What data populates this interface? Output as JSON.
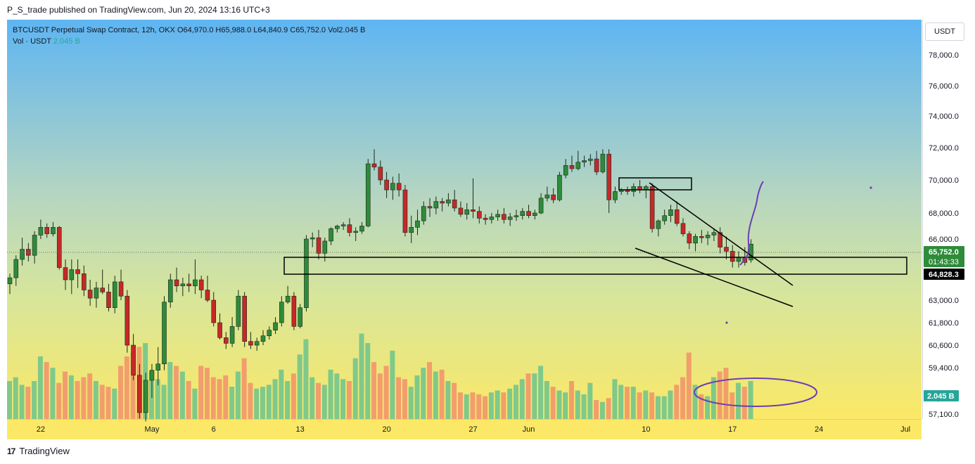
{
  "header": "P_S_trade published on TradingView.com, Jun 20, 2024 13:16 UTC+3",
  "legend": {
    "symbol": "BTCUSDT Perpetual Swap Contract, 12h, OKX",
    "o_label": "O",
    "o": "64,970.0",
    "h_label": "H",
    "h": "65,988.0",
    "l_label": "L",
    "l": "64,840.9",
    "c_label": "C",
    "c": "65,752.0",
    "vol_label": "Vol",
    "vol": "2.045 B",
    "vol_series": "Vol · USDT",
    "vol_value": "2.045 B"
  },
  "unit_button": "USDT",
  "footer": {
    "brand": "TradingView",
    "logo": "17"
  },
  "price_badges": {
    "last": "65,752.0",
    "countdown": "01:43:33",
    "line": "64,828.3",
    "volume": "2.045 B"
  },
  "colors": {
    "up": "#26a69a",
    "down": "#ef5350",
    "candle_up": "#2e8b3a",
    "candle_down": "#c62828",
    "vol_up": "#7fc98a",
    "vol_down": "#f29e6c",
    "annotation": "#6a3fb5"
  },
  "chart_data": {
    "type": "candlestick",
    "title": "BTCUSDT Perpetual Swap Contract, 12h, OKX",
    "ylim": [
      56500,
      80500
    ],
    "price_ticks": [
      {
        "label": "78,000.0",
        "v": 78000
      },
      {
        "label": "76,000.0",
        "v": 76000
      },
      {
        "label": "74,000.0",
        "v": 74000
      },
      {
        "label": "72,000.0",
        "v": 72000
      },
      {
        "label": "70,000.0",
        "v": 70000
      },
      {
        "label": "68,000.0",
        "v": 68000
      },
      {
        "label": "66,000.0",
        "v": 66000
      },
      {
        "label": "63,000.0",
        "v": 63000
      },
      {
        "label": "61,800.0",
        "v": 61800
      },
      {
        "label": "60,600.0",
        "v": 60600
      },
      {
        "label": "59,400.0",
        "v": 59400
      },
      {
        "label": "58,200.0",
        "v": 58200
      },
      {
        "label": "57,100.0",
        "v": 57100
      }
    ],
    "time_ticks": [
      {
        "label": "22",
        "i": 5
      },
      {
        "label": "May",
        "i": 23
      },
      {
        "label": "6",
        "i": 33
      },
      {
        "label": "13",
        "i": 47
      },
      {
        "label": "20",
        "i": 61
      },
      {
        "label": "27",
        "i": 75
      },
      {
        "label": "Jun",
        "i": 84
      },
      {
        "label": "10",
        "i": 103
      },
      {
        "label": "17",
        "i": 117
      },
      {
        "label": "24",
        "i": 131
      },
      {
        "label": "Jul",
        "i": 145
      }
    ],
    "ohlc": [
      [
        63800,
        64300,
        63300,
        64100
      ],
      [
        64100,
        65200,
        63700,
        65000
      ],
      [
        65000,
        66100,
        64700,
        65500
      ],
      [
        65500,
        65800,
        64900,
        65200
      ],
      [
        65200,
        66600,
        64800,
        66300
      ],
      [
        66300,
        67500,
        66000,
        66900
      ],
      [
        66900,
        67200,
        66100,
        66400
      ],
      [
        66400,
        67300,
        66200,
        66900
      ],
      [
        66900,
        67000,
        64500,
        64600
      ],
      [
        64600,
        65000,
        63500,
        64000
      ],
      [
        64000,
        65000,
        63300,
        64500
      ],
      [
        64500,
        65000,
        63600,
        64300
      ],
      [
        64300,
        64700,
        63200,
        63500
      ],
      [
        63500,
        64000,
        62700,
        63100
      ],
      [
        63100,
        63900,
        62600,
        63600
      ],
      [
        63600,
        64500,
        63300,
        63400
      ],
      [
        63400,
        63800,
        62400,
        62600
      ],
      [
        62600,
        64200,
        62300,
        63900
      ],
      [
        63900,
        64500,
        63000,
        63200
      ],
      [
        63200,
        63500,
        60200,
        60600
      ],
      [
        60600,
        61200,
        58900,
        59100
      ],
      [
        59100,
        59600,
        56800,
        57200
      ],
      [
        57200,
        59200,
        56600,
        58900
      ],
      [
        58900,
        59600,
        58200,
        59300
      ],
      [
        59300,
        60500,
        58700,
        59600
      ],
      [
        59600,
        63200,
        59300,
        62900
      ],
      [
        62900,
        64300,
        62600,
        64000
      ],
      [
        64000,
        64600,
        63400,
        63700
      ],
      [
        63700,
        64100,
        63200,
        63800
      ],
      [
        63800,
        64300,
        63400,
        63700
      ],
      [
        63700,
        65000,
        63300,
        64000
      ],
      [
        64000,
        64200,
        63100,
        63500
      ],
      [
        63500,
        64200,
        62900,
        63000
      ],
      [
        63000,
        63400,
        61600,
        61800
      ],
      [
        61800,
        62300,
        60900,
        61000
      ],
      [
        61000,
        61300,
        60400,
        60700
      ],
      [
        60700,
        62100,
        60500,
        61600
      ],
      [
        61600,
        63500,
        61400,
        63200
      ],
      [
        63200,
        63400,
        60500,
        60800
      ],
      [
        60800,
        61300,
        60400,
        60600
      ],
      [
        60600,
        61000,
        60300,
        60800
      ],
      [
        60800,
        61400,
        60600,
        61100
      ],
      [
        61100,
        61600,
        60900,
        61400
      ],
      [
        61400,
        62100,
        61200,
        61800
      ],
      [
        61800,
        63200,
        61600,
        62900
      ],
      [
        62900,
        63700,
        62800,
        63200
      ],
      [
        63200,
        63400,
        61400,
        61600
      ],
      [
        61600,
        62800,
        61500,
        62600
      ],
      [
        62600,
        66300,
        62400,
        66000
      ],
      [
        66000,
        66500,
        65600,
        66100
      ],
      [
        66100,
        66700,
        65000,
        65300
      ],
      [
        65300,
        66100,
        64900,
        65900
      ],
      [
        65900,
        66900,
        65700,
        66800
      ],
      [
        66800,
        67100,
        66500,
        67000
      ],
      [
        67000,
        67300,
        66700,
        67100
      ],
      [
        67100,
        67600,
        66200,
        66500
      ],
      [
        66500,
        66900,
        65900,
        66600
      ],
      [
        66600,
        67300,
        66400,
        67000
      ],
      [
        67000,
        71300,
        66900,
        71000
      ],
      [
        71000,
        71900,
        70600,
        70800
      ],
      [
        70800,
        71200,
        69700,
        70000
      ],
      [
        70000,
        70500,
        68900,
        69400
      ],
      [
        69400,
        70200,
        68800,
        69800
      ],
      [
        69800,
        70400,
        69000,
        69400
      ],
      [
        69400,
        69700,
        66200,
        66500
      ],
      [
        66500,
        67800,
        65800,
        66900
      ],
      [
        66900,
        68200,
        66300,
        67400
      ],
      [
        67400,
        68700,
        67100,
        68400
      ],
      [
        68400,
        68900,
        67700,
        68300
      ],
      [
        68300,
        69000,
        67900,
        68700
      ],
      [
        68700,
        68900,
        68100,
        68600
      ],
      [
        68600,
        69200,
        68400,
        68800
      ],
      [
        68800,
        69400,
        68100,
        68300
      ],
      [
        68300,
        68700,
        67700,
        67900
      ],
      [
        67900,
        68600,
        67500,
        68200
      ],
      [
        68200,
        70100,
        67600,
        68100
      ],
      [
        68100,
        68400,
        67200,
        67600
      ],
      [
        67600,
        67900,
        67100,
        67500
      ],
      [
        67500,
        68000,
        67200,
        67700
      ],
      [
        67700,
        68200,
        67400,
        67900
      ],
      [
        67900,
        68300,
        67200,
        67500
      ],
      [
        67500,
        68000,
        67000,
        67700
      ],
      [
        67700,
        68200,
        67400,
        67800
      ],
      [
        67800,
        68300,
        67500,
        68100
      ],
      [
        68100,
        68500,
        67600,
        67800
      ],
      [
        67800,
        68200,
        67500,
        68000
      ],
      [
        68000,
        69200,
        67900,
        68900
      ],
      [
        68900,
        69600,
        68700,
        69100
      ],
      [
        69100,
        69500,
        68600,
        68800
      ],
      [
        68800,
        70500,
        68700,
        70300
      ],
      [
        70300,
        71300,
        70100,
        70900
      ],
      [
        70900,
        71500,
        70500,
        70700
      ],
      [
        70700,
        71800,
        70600,
        71100
      ],
      [
        71100,
        71500,
        70800,
        71200
      ],
      [
        71200,
        71600,
        70900,
        71300
      ],
      [
        71300,
        71800,
        70300,
        70500
      ],
      [
        70500,
        71900,
        70400,
        71600
      ],
      [
        71600,
        71900,
        68000,
        68800
      ],
      [
        68800,
        69600,
        68600,
        69300
      ],
      [
        69300,
        69500,
        69100,
        69400
      ],
      [
        69400,
        69600,
        69100,
        69300
      ],
      [
        69300,
        69800,
        69000,
        69600
      ],
      [
        69600,
        70000,
        69200,
        69400
      ],
      [
        69400,
        69700,
        68900,
        69600
      ],
      [
        69600,
        69800,
        66500,
        66800
      ],
      [
        66800,
        67500,
        66200,
        67400
      ],
      [
        67400,
        68200,
        67100,
        67800
      ],
      [
        67800,
        68500,
        67300,
        68200
      ],
      [
        68200,
        68700,
        67000,
        67200
      ],
      [
        67200,
        67600,
        66200,
        66400
      ],
      [
        66400,
        66600,
        65500,
        65800
      ],
      [
        65800,
        66400,
        65400,
        66200
      ],
      [
        66200,
        66700,
        65800,
        66100
      ],
      [
        66100,
        66600,
        65700,
        66300
      ],
      [
        66300,
        66800,
        65900,
        66500
      ],
      [
        66500,
        66900,
        65300,
        65600
      ],
      [
        65600,
        66200,
        65000,
        65400
      ],
      [
        65400,
        65700,
        64600,
        64900
      ],
      [
        64900,
        65400,
        64600,
        65100
      ],
      [
        65100,
        65600,
        64700,
        64850
      ],
      [
        64970,
        65988,
        64840,
        65752
      ]
    ],
    "volumes": [
      20,
      22,
      18,
      17,
      20,
      33,
      30,
      27,
      19,
      25,
      23,
      20,
      22,
      24,
      20,
      18,
      17,
      16,
      28,
      33,
      35,
      38,
      40,
      25,
      21,
      18,
      30,
      28,
      25,
      20,
      16,
      28,
      27,
      22,
      21,
      23,
      17,
      25,
      32,
      19,
      16,
      17,
      18,
      21,
      26,
      20,
      24,
      34,
      42,
      22,
      19,
      18,
      26,
      24,
      21,
      20,
      32,
      45,
      40,
      30,
      24,
      28,
      36,
      22,
      21,
      17,
      23,
      27,
      30,
      25,
      26,
      20,
      19,
      14,
      13,
      14,
      13,
      12,
      14,
      15,
      14,
      16,
      18,
      21,
      24,
      24,
      28,
      20,
      17,
      15,
      14,
      20,
      15,
      13,
      19,
      10,
      9,
      11,
      21,
      18,
      17,
      17,
      14,
      15,
      14,
      12,
      12,
      15,
      18,
      22,
      35,
      18,
      13,
      12,
      22,
      25,
      27,
      14,
      19,
      17,
      20
    ]
  }
}
